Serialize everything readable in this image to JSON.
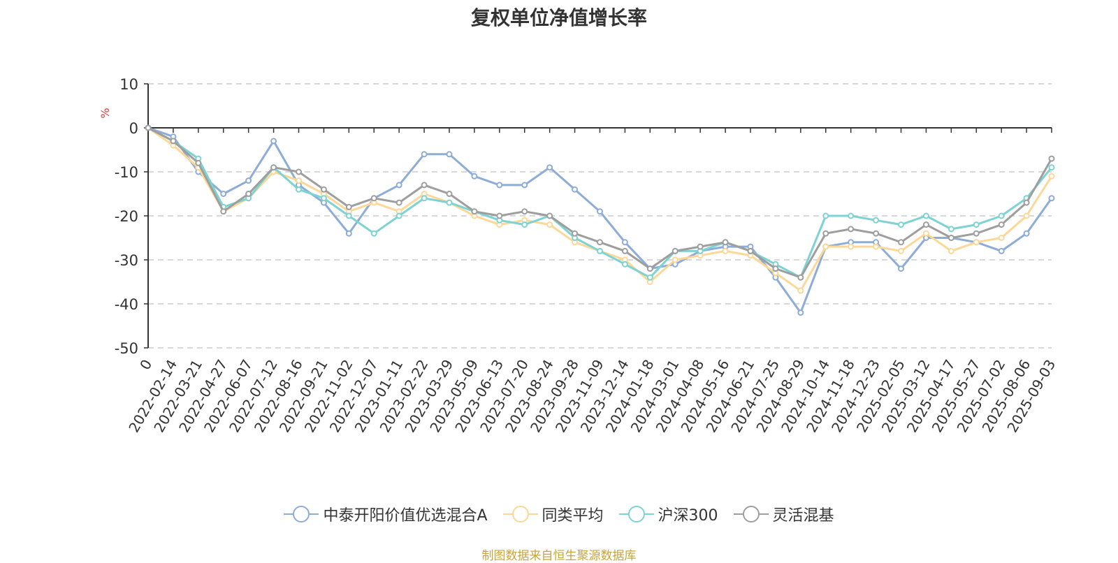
{
  "chart_data": {
    "type": "line",
    "title": "复权单位净值增长率",
    "ylabel": "%",
    "ylim": [
      -50,
      10
    ],
    "yticks": [
      10,
      0,
      -10,
      -20,
      -30,
      -40,
      -50
    ],
    "x_labels": [
      "0",
      "2022-02-14",
      "2022-03-21",
      "2022-04-27",
      "2022-06-07",
      "2022-07-12",
      "2022-08-16",
      "2022-09-21",
      "2022-11-02",
      "2022-12-07",
      "2023-01-11",
      "2023-02-22",
      "2023-03-29",
      "2023-05-09",
      "2023-06-13",
      "2023-07-20",
      "2023-08-24",
      "2023-09-28",
      "2023-11-09",
      "2023-12-14",
      "2024-01-18",
      "2024-03-01",
      "2024-04-08",
      "2024-05-16",
      "2024-06-21",
      "2024-07-25",
      "2024-08-29",
      "2024-10-14",
      "2024-11-18",
      "2024-12-23",
      "2025-02-05",
      "2025-03-12",
      "2025-04-17",
      "2025-05-27",
      "2025-07-02",
      "2025-08-06",
      "2025-09-03"
    ],
    "grid": "horizontal-dashed",
    "legend_position": "bottom",
    "series": [
      {
        "name": "中泰开阳价值优选混合A",
        "color": "#8eacd8",
        "values": [
          0,
          -2,
          -10,
          -15,
          -12,
          -3,
          -13,
          -17,
          -24,
          -16,
          -13,
          -6,
          -6,
          -11,
          -13,
          -13,
          -9,
          -14,
          -19,
          -26,
          -32,
          -31,
          -28,
          -27,
          -27,
          -34,
          -42,
          -27,
          -26,
          -26,
          -32,
          -25,
          -25,
          -26,
          -28,
          -24,
          -16
        ]
      },
      {
        "name": "同类平均",
        "color": "#fcd898",
        "values": [
          0,
          -4,
          -9,
          -19,
          -16,
          -10,
          -12,
          -15,
          -19,
          -17,
          -19,
          -15,
          -17,
          -20,
          -22,
          -21,
          -22,
          -26,
          -28,
          -30,
          -35,
          -30,
          -29,
          -28,
          -29,
          -33,
          -37,
          -27,
          -27,
          -27,
          -28,
          -24,
          -28,
          -26,
          -25,
          -20,
          -11
        ]
      },
      {
        "name": "沪深300",
        "color": "#7dd3d3",
        "values": [
          0,
          -3,
          -7,
          -18,
          -16,
          -9,
          -14,
          -16,
          -20,
          -24,
          -20,
          -16,
          -17,
          -19,
          -21,
          -22,
          -20,
          -25,
          -28,
          -31,
          -34,
          -28,
          -28,
          -26,
          -28,
          -31,
          -34,
          -20,
          -20,
          -21,
          -22,
          -20,
          -23,
          -22,
          -20,
          -16,
          -9
        ]
      },
      {
        "name": "灵活混基",
        "color": "#9e9e9e",
        "values": [
          0,
          -3,
          -8,
          -19,
          -15,
          -9,
          -10,
          -14,
          -18,
          -16,
          -17,
          -13,
          -15,
          -19,
          -20,
          -19,
          -20,
          -24,
          -26,
          -28,
          -32,
          -28,
          -27,
          -26,
          -28,
          -32,
          -34,
          -24,
          -23,
          -24,
          -26,
          -22,
          -25,
          -24,
          -22,
          -17,
          -7
        ]
      }
    ]
  },
  "legend": {
    "items": [
      "中泰开阳价值优选混合A",
      "同类平均",
      "沪深300",
      "灵活混基"
    ]
  },
  "footer": {
    "source_text": "制图数据来自恒生聚源数据库",
    "source_color": "#c9a43b"
  }
}
